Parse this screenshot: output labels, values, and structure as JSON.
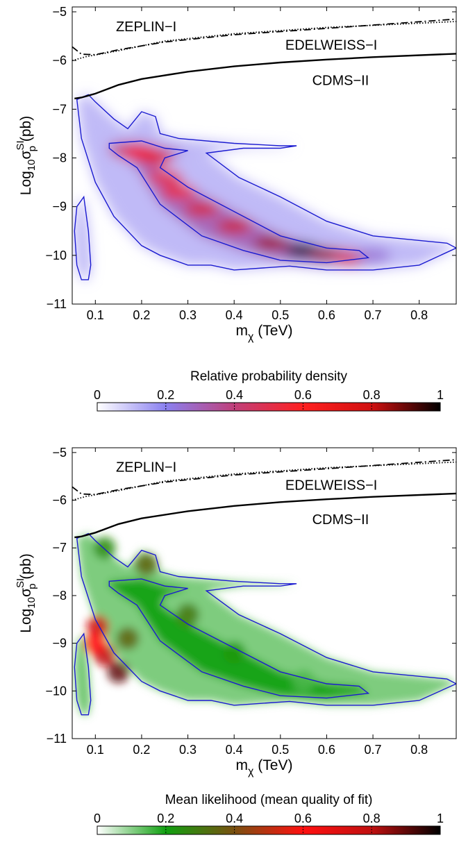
{
  "chart_data": [
    {
      "type": "heatmap",
      "panel": "top",
      "xlabel": {
        "main": "m",
        "sub": "χ",
        "rest": " (TeV)"
      },
      "ylabel": {
        "main": "Log",
        "sub1": "10",
        "sigma": "σ",
        "sup": "SI",
        "sub2": "p",
        "rest": " (pb)"
      },
      "xlim": [
        0.05,
        0.88
      ],
      "ylim": [
        -11,
        -4.9
      ],
      "xticks": [
        0.1,
        0.2,
        0.3,
        0.4,
        0.5,
        0.6,
        0.7,
        0.8
      ],
      "xtick_labels": [
        "0.1",
        "0.2",
        "0.3",
        "0.4",
        "0.5",
        "0.6",
        "0.7",
        "0.8"
      ],
      "yticks": [
        -11,
        -10,
        -9,
        -8,
        -7,
        -6,
        -5
      ],
      "ytick_labels": [
        "−11",
        "−10",
        "−9",
        "−8",
        "−7",
        "−6",
        "−5"
      ],
      "limit_labels": [
        {
          "text": "ZEPLIN−I",
          "x": 0.21,
          "y": -5.4
        },
        {
          "text": "EDELWEISS−I",
          "x": 0.61,
          "y": -5.78
        },
        {
          "text": "CDMS−II",
          "x": 0.63,
          "y": -6.5
        }
      ],
      "limits": {
        "zeplin": {
          "style": "dotted",
          "points": [
            [
              0.05,
              -6.0
            ],
            [
              0.08,
              -5.92
            ],
            [
              0.15,
              -5.8
            ],
            [
              0.25,
              -5.6
            ],
            [
              0.4,
              -5.45
            ],
            [
              0.6,
              -5.32
            ],
            [
              0.88,
              -5.2
            ]
          ]
        },
        "edelweiss": {
          "style": "dashdot",
          "points": [
            [
              0.05,
              -5.72
            ],
            [
              0.07,
              -5.87
            ],
            [
              0.1,
              -5.88
            ],
            [
              0.15,
              -5.78
            ],
            [
              0.25,
              -5.62
            ],
            [
              0.4,
              -5.47
            ],
            [
              0.6,
              -5.34
            ],
            [
              0.88,
              -5.15
            ]
          ]
        },
        "cdms": {
          "style": "solid",
          "points": [
            [
              0.055,
              -6.78
            ],
            [
              0.07,
              -6.76
            ],
            [
              0.1,
              -6.68
            ],
            [
              0.15,
              -6.5
            ],
            [
              0.2,
              -6.38
            ],
            [
              0.3,
              -6.23
            ],
            [
              0.4,
              -6.12
            ],
            [
              0.5,
              -6.04
            ],
            [
              0.6,
              -5.98
            ],
            [
              0.7,
              -5.93
            ],
            [
              0.88,
              -5.86
            ]
          ]
        }
      },
      "contours": [
        [
          [
            0.06,
            -6.8
          ],
          [
            0.085,
            -6.7
          ],
          [
            0.1,
            -6.85
          ],
          [
            0.14,
            -7.2
          ],
          [
            0.17,
            -7.4
          ],
          [
            0.2,
            -7.05
          ],
          [
            0.23,
            -7.15
          ],
          [
            0.24,
            -7.5
          ],
          [
            0.28,
            -7.6
          ],
          [
            0.4,
            -7.7
          ],
          [
            0.5,
            -7.75
          ],
          [
            0.535,
            -7.75
          ],
          [
            0.5,
            -7.8
          ],
          [
            0.42,
            -7.8
          ],
          [
            0.34,
            -7.9
          ],
          [
            0.41,
            -8.4
          ],
          [
            0.5,
            -8.8
          ],
          [
            0.6,
            -9.3
          ],
          [
            0.7,
            -9.6
          ],
          [
            0.86,
            -9.75
          ],
          [
            0.88,
            -9.85
          ],
          [
            0.8,
            -10.2
          ],
          [
            0.7,
            -10.3
          ],
          [
            0.6,
            -10.3
          ],
          [
            0.52,
            -10.22
          ],
          [
            0.4,
            -10.3
          ],
          [
            0.35,
            -10.2
          ],
          [
            0.3,
            -10.2
          ],
          [
            0.24,
            -10.0
          ],
          [
            0.2,
            -9.8
          ],
          [
            0.14,
            -9.2
          ],
          [
            0.1,
            -8.5
          ],
          [
            0.07,
            -7.6
          ],
          [
            0.06,
            -6.8
          ]
        ],
        [
          [
            0.13,
            -7.7
          ],
          [
            0.2,
            -7.65
          ],
          [
            0.25,
            -7.8
          ],
          [
            0.3,
            -7.85
          ],
          [
            0.25,
            -8.0
          ],
          [
            0.24,
            -8.2
          ],
          [
            0.3,
            -8.6
          ],
          [
            0.4,
            -9.1
          ],
          [
            0.5,
            -9.6
          ],
          [
            0.6,
            -9.85
          ],
          [
            0.67,
            -9.9
          ],
          [
            0.69,
            -10.05
          ],
          [
            0.6,
            -10.15
          ],
          [
            0.5,
            -10.1
          ],
          [
            0.42,
            -9.9
          ],
          [
            0.33,
            -9.6
          ],
          [
            0.24,
            -8.95
          ],
          [
            0.19,
            -8.2
          ],
          [
            0.15,
            -7.95
          ],
          [
            0.13,
            -7.8
          ],
          [
            0.13,
            -7.7
          ]
        ],
        [
          [
            0.06,
            -9.0
          ],
          [
            0.075,
            -8.8
          ],
          [
            0.085,
            -9.5
          ],
          [
            0.09,
            -10.2
          ],
          [
            0.085,
            -10.5
          ],
          [
            0.07,
            -10.5
          ],
          [
            0.06,
            -10.2
          ],
          [
            0.055,
            -9.5
          ],
          [
            0.06,
            -9.0
          ]
        ]
      ],
      "density_ridge": [
        [
          0.17,
          -7.85,
          0.45
        ],
        [
          0.2,
          -7.9,
          0.6
        ],
        [
          0.23,
          -8.0,
          0.7
        ],
        [
          0.25,
          -8.4,
          0.55
        ],
        [
          0.28,
          -8.7,
          0.65
        ],
        [
          0.33,
          -9.05,
          0.75
        ],
        [
          0.4,
          -9.4,
          0.8
        ],
        [
          0.48,
          -9.75,
          0.85
        ],
        [
          0.55,
          -9.9,
          1.0
        ],
        [
          0.6,
          -9.98,
          0.85
        ],
        [
          0.65,
          -10.05,
          0.5
        ],
        [
          0.7,
          -10.0,
          0.25
        ]
      ],
      "colorbar": {
        "label": "Relative probability density",
        "ticks": [
          0,
          0.2,
          0.4,
          0.6,
          0.8,
          1
        ],
        "tick_labels": [
          "0",
          "0.2",
          "0.4",
          "0.6",
          "0.8",
          "1"
        ],
        "colors": [
          "#ffffff",
          "#8a80f0",
          "#c0407a",
          "#ff2020",
          "#d01010",
          "#000000"
        ]
      }
    },
    {
      "type": "heatmap",
      "panel": "bottom",
      "xlabel": {
        "main": "m",
        "sub": "χ",
        "rest": " (TeV)"
      },
      "ylabel": {
        "main": "Log",
        "sub1": "10",
        "sigma": "σ",
        "sup": "SI",
        "sub2": "p",
        "rest": " (pb)"
      },
      "xlim": [
        0.05,
        0.88
      ],
      "ylim": [
        -11,
        -4.9
      ],
      "xticks": [
        0.1,
        0.2,
        0.3,
        0.4,
        0.5,
        0.6,
        0.7,
        0.8
      ],
      "xtick_labels": [
        "0.1",
        "0.2",
        "0.3",
        "0.4",
        "0.5",
        "0.6",
        "0.7",
        "0.8"
      ],
      "yticks": [
        -11,
        -10,
        -9,
        -8,
        -7,
        -6,
        -5
      ],
      "ytick_labels": [
        "−11",
        "−10",
        "−9",
        "−8",
        "−7",
        "−6",
        "−5"
      ],
      "limit_labels": [
        {
          "text": "ZEPLIN−I",
          "x": 0.21,
          "y": -5.4
        },
        {
          "text": "EDELWEISS−I",
          "x": 0.61,
          "y": -5.78
        },
        {
          "text": "CDMS−II",
          "x": 0.63,
          "y": -6.5
        }
      ],
      "limits": {
        "zeplin": {
          "style": "dotted",
          "points": [
            [
              0.05,
              -6.0
            ],
            [
              0.08,
              -5.92
            ],
            [
              0.15,
              -5.8
            ],
            [
              0.25,
              -5.6
            ],
            [
              0.4,
              -5.45
            ],
            [
              0.6,
              -5.32
            ],
            [
              0.88,
              -5.2
            ]
          ]
        },
        "edelweiss": {
          "style": "dashdot",
          "points": [
            [
              0.05,
              -5.72
            ],
            [
              0.07,
              -5.87
            ],
            [
              0.1,
              -5.88
            ],
            [
              0.15,
              -5.78
            ],
            [
              0.25,
              -5.62
            ],
            [
              0.4,
              -5.47
            ],
            [
              0.6,
              -5.34
            ],
            [
              0.88,
              -5.15
            ]
          ]
        },
        "cdms": {
          "style": "solid",
          "points": [
            [
              0.055,
              -6.78
            ],
            [
              0.07,
              -6.76
            ],
            [
              0.1,
              -6.68
            ],
            [
              0.15,
              -6.5
            ],
            [
              0.2,
              -6.38
            ],
            [
              0.3,
              -6.23
            ],
            [
              0.4,
              -6.12
            ],
            [
              0.5,
              -6.04
            ],
            [
              0.6,
              -5.98
            ],
            [
              0.7,
              -5.93
            ],
            [
              0.88,
              -5.86
            ]
          ]
        }
      },
      "contours": [
        [
          [
            0.06,
            -6.8
          ],
          [
            0.085,
            -6.7
          ],
          [
            0.1,
            -6.85
          ],
          [
            0.14,
            -7.2
          ],
          [
            0.17,
            -7.4
          ],
          [
            0.2,
            -7.05
          ],
          [
            0.23,
            -7.15
          ],
          [
            0.24,
            -7.5
          ],
          [
            0.28,
            -7.6
          ],
          [
            0.4,
            -7.7
          ],
          [
            0.5,
            -7.75
          ],
          [
            0.535,
            -7.75
          ],
          [
            0.5,
            -7.8
          ],
          [
            0.42,
            -7.8
          ],
          [
            0.34,
            -7.9
          ],
          [
            0.41,
            -8.4
          ],
          [
            0.5,
            -8.8
          ],
          [
            0.6,
            -9.3
          ],
          [
            0.7,
            -9.6
          ],
          [
            0.86,
            -9.75
          ],
          [
            0.88,
            -9.85
          ],
          [
            0.8,
            -10.2
          ],
          [
            0.7,
            -10.3
          ],
          [
            0.6,
            -10.3
          ],
          [
            0.52,
            -10.22
          ],
          [
            0.4,
            -10.3
          ],
          [
            0.35,
            -10.2
          ],
          [
            0.3,
            -10.2
          ],
          [
            0.24,
            -10.0
          ],
          [
            0.2,
            -9.8
          ],
          [
            0.14,
            -9.2
          ],
          [
            0.1,
            -8.5
          ],
          [
            0.07,
            -7.6
          ],
          [
            0.06,
            -6.8
          ]
        ],
        [
          [
            0.13,
            -7.7
          ],
          [
            0.2,
            -7.65
          ],
          [
            0.25,
            -7.8
          ],
          [
            0.3,
            -7.85
          ],
          [
            0.25,
            -8.0
          ],
          [
            0.24,
            -8.2
          ],
          [
            0.3,
            -8.6
          ],
          [
            0.4,
            -9.1
          ],
          [
            0.5,
            -9.6
          ],
          [
            0.6,
            -9.85
          ],
          [
            0.67,
            -9.9
          ],
          [
            0.69,
            -10.05
          ],
          [
            0.6,
            -10.15
          ],
          [
            0.5,
            -10.1
          ],
          [
            0.42,
            -9.9
          ],
          [
            0.33,
            -9.6
          ],
          [
            0.24,
            -8.95
          ],
          [
            0.19,
            -8.2
          ],
          [
            0.15,
            -7.95
          ],
          [
            0.13,
            -7.8
          ],
          [
            0.13,
            -7.7
          ]
        ],
        [
          [
            0.06,
            -9.0
          ],
          [
            0.075,
            -8.8
          ],
          [
            0.085,
            -9.5
          ],
          [
            0.09,
            -10.2
          ],
          [
            0.085,
            -10.5
          ],
          [
            0.07,
            -10.5
          ],
          [
            0.06,
            -10.2
          ],
          [
            0.055,
            -9.5
          ],
          [
            0.06,
            -9.0
          ]
        ]
      ],
      "likelihood_hotspots": [
        [
          0.105,
          -8.65,
          0.75
        ],
        [
          0.12,
          -9.25,
          0.8
        ],
        [
          0.15,
          -9.6,
          0.9
        ],
        [
          0.1,
          -9.0,
          0.6
        ],
        [
          0.21,
          -7.35,
          0.35
        ],
        [
          0.17,
          -8.9,
          0.35
        ],
        [
          0.3,
          -8.4,
          0.3
        ],
        [
          0.12,
          -7.0,
          0.25
        ],
        [
          0.4,
          -9.2,
          0.22
        ],
        [
          0.55,
          -9.8,
          0.15
        ]
      ],
      "colorbar": {
        "label": "Mean likelihood (mean quality of fit)",
        "ticks": [
          0,
          0.2,
          0.4,
          0.6,
          0.8,
          1
        ],
        "tick_labels": [
          "0",
          "0.2",
          "0.4",
          "0.6",
          "0.8",
          "1"
        ],
        "colors": [
          "#ffffff",
          "#10a010",
          "#7a5010",
          "#ff1010",
          "#c01010",
          "#000000"
        ]
      }
    }
  ]
}
